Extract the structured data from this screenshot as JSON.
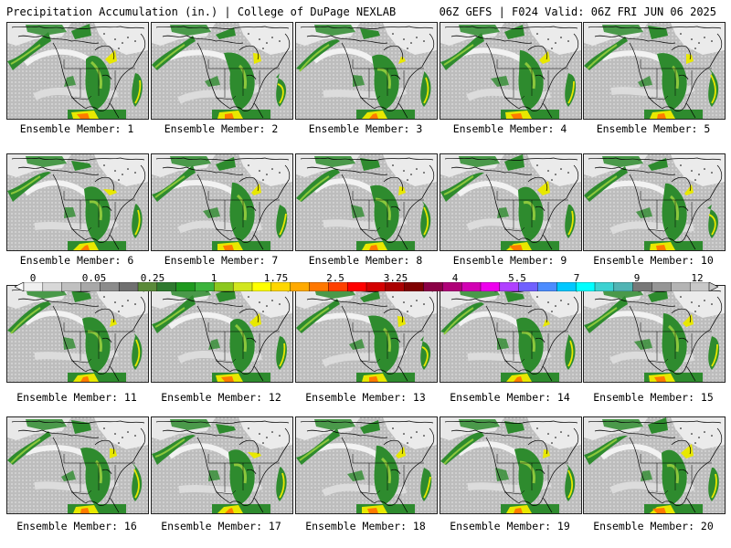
{
  "header": {
    "title": "Precipitation Accumulation (in.) | College of DuPage NEXLAB",
    "run": "06Z GEFS | F024 Valid: 06Z FRI JUN 06 2025"
  },
  "members": [
    {
      "label": "Ensemble Member: 1"
    },
    {
      "label": "Ensemble Member: 2"
    },
    {
      "label": "Ensemble Member: 3"
    },
    {
      "label": "Ensemble Member: 4"
    },
    {
      "label": "Ensemble Member: 5"
    },
    {
      "label": "Ensemble Member: 6"
    },
    {
      "label": "Ensemble Member: 7"
    },
    {
      "label": "Ensemble Member: 8"
    },
    {
      "label": "Ensemble Member: 9"
    },
    {
      "label": "Ensemble Member: 10"
    },
    {
      "label": "Ensemble Member: 11"
    },
    {
      "label": "Ensemble Member: 12"
    },
    {
      "label": "Ensemble Member: 13"
    },
    {
      "label": "Ensemble Member: 14"
    },
    {
      "label": "Ensemble Member: 15"
    },
    {
      "label": "Ensemble Member: 16"
    },
    {
      "label": "Ensemble Member: 17"
    },
    {
      "label": "Ensemble Member: 18"
    },
    {
      "label": "Ensemble Member: 19"
    },
    {
      "label": "Ensemble Member: 20"
    }
  ],
  "colorbar": {
    "labels": [
      "0",
      "0.05",
      "0.25",
      "1",
      "1.75",
      "2.5",
      "3.25",
      "4",
      "5.5",
      "7",
      "9",
      "12"
    ],
    "colors": [
      "#f0f0f0",
      "#d8d8d8",
      "#c0c0c0",
      "#a8a8a8",
      "#8c8c8c",
      "#707070",
      "#5a8a3a",
      "#2f7a2f",
      "#1e9a1e",
      "#3cb43c",
      "#8cc81e",
      "#d2e61e",
      "#ffff00",
      "#ffd700",
      "#ffaa00",
      "#ff7800",
      "#ff4000",
      "#ff0000",
      "#d40000",
      "#aa0000",
      "#800000",
      "#8b0046",
      "#b00078",
      "#d200b4",
      "#ee00ee",
      "#b040ff",
      "#7060ff",
      "#4c8cff",
      "#00c8ff",
      "#00ffff",
      "#3cd2d2",
      "#50b4b4",
      "#787878",
      "#969696",
      "#b4b4b4",
      "#c8c8c8"
    ]
  }
}
